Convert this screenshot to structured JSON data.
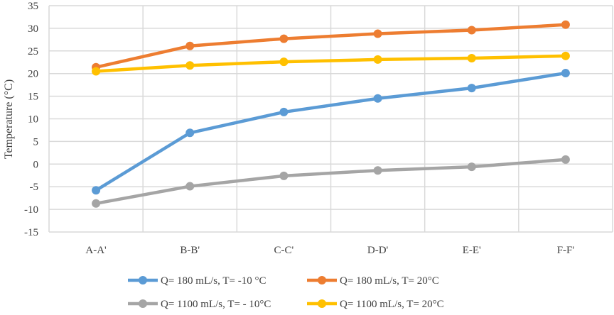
{
  "chart_data": {
    "type": "line",
    "title": "",
    "xlabel": "",
    "ylabel": "Temperature (°C)",
    "categories": [
      "A-A'",
      "B-B'",
      "C-C'",
      "D-D'",
      "E-E'",
      "F-F'"
    ],
    "ylim": [
      -15,
      35
    ],
    "yticks": [
      35,
      30,
      25,
      20,
      15,
      10,
      5,
      0,
      -5,
      -10,
      -15
    ],
    "grid": true,
    "legend_position": "bottom",
    "series": [
      {
        "name": "Q= 180 mL/s, T= -10 °C",
        "color": "#5B9BD5",
        "values": [
          -5.8,
          6.9,
          11.5,
          14.5,
          16.8,
          20.1
        ]
      },
      {
        "name": "Q= 180 mL/s, T= 20°C",
        "color": "#ED7D31",
        "values": [
          21.4,
          26.1,
          27.7,
          28.8,
          29.6,
          30.8
        ]
      },
      {
        "name": "Q= 1100 mL/s, T= - 10°C",
        "color": "#A5A5A5",
        "values": [
          -8.7,
          -4.9,
          -2.6,
          -1.4,
          -0.6,
          1.0
        ]
      },
      {
        "name": "Q= 1100 mL/s, T= 20°C",
        "color": "#FFC000",
        "values": [
          20.5,
          21.8,
          22.6,
          23.1,
          23.4,
          23.9
        ]
      }
    ]
  }
}
